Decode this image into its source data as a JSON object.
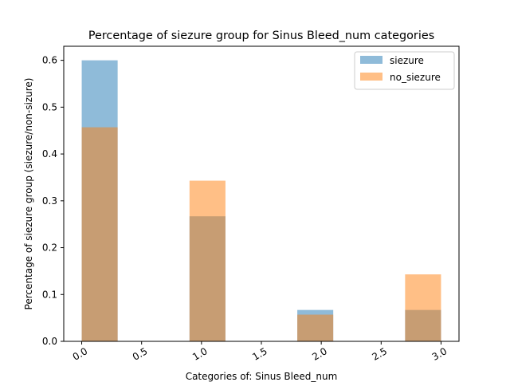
{
  "chart_data": {
    "type": "bar",
    "title": "Percentage of siezure group for Sinus Bleed_num categories",
    "xlabel": "Categories of: Sinus Bleed_num",
    "ylabel": "Percentage of siezure group (siezure/non-sizure)",
    "xlim": [
      -0.15,
      3.15
    ],
    "ylim": [
      0,
      0.63
    ],
    "x_ticks": [
      "0.0",
      "0.5",
      "1.0",
      "1.5",
      "2.0",
      "2.5",
      "3.0"
    ],
    "x_tick_values": [
      0,
      0.5,
      1.0,
      1.5,
      2.0,
      2.5,
      3.0
    ],
    "y_ticks": [
      "0.0",
      "0.1",
      "0.2",
      "0.3",
      "0.4",
      "0.5",
      "0.6"
    ],
    "y_tick_values": [
      0,
      0.1,
      0.2,
      0.3,
      0.4,
      0.5,
      0.6
    ],
    "grid": false,
    "legend_position": "top-right",
    "bins": [
      {
        "x0": 0.0,
        "x1": 0.3
      },
      {
        "x0": 0.9,
        "x1": 1.2
      },
      {
        "x0": 1.8,
        "x1": 2.1
      },
      {
        "x0": 2.7,
        "x1": 3.0
      }
    ],
    "series": [
      {
        "name": "siezure",
        "values": [
          0.6,
          0.267,
          0.067,
          0.067
        ],
        "color": "#1f77b4",
        "alpha": 0.5
      },
      {
        "name": "no_siezure",
        "values": [
          0.457,
          0.343,
          0.057,
          0.143
        ],
        "color": "#ff7f0e",
        "alpha": 0.5
      }
    ]
  }
}
